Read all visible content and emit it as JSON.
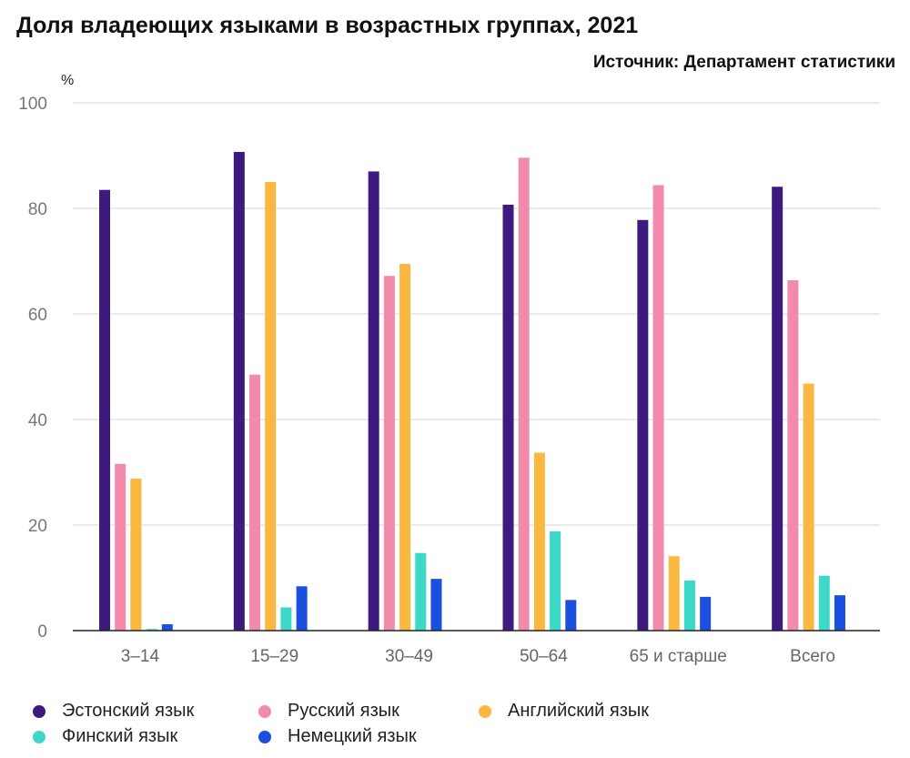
{
  "title": "Доля владеющих языками в возрастных группах, 2021",
  "source": "Источник: Департамент статистики",
  "chart_data": {
    "type": "bar",
    "title": "Доля владеющих языками в возрастных группах, 2021",
    "ylabel": "%",
    "xlabel": "",
    "ylim": [
      0,
      100
    ],
    "yticks": [
      0,
      20,
      40,
      60,
      80,
      100
    ],
    "grid": true,
    "legend_position": "bottom",
    "categories": [
      "3–14",
      "15–29",
      "30–49",
      "50–64",
      "65 и старше",
      "Всего"
    ],
    "series": [
      {
        "name": "Эстонский язык",
        "color": "#3d1a7e",
        "values": [
          83.5,
          90.7,
          87.0,
          80.7,
          77.8,
          84.1
        ]
      },
      {
        "name": "Русский язык",
        "color": "#f28bab",
        "values": [
          31.6,
          48.5,
          67.2,
          89.6,
          84.4,
          66.4
        ]
      },
      {
        "name": "Английский язык",
        "color": "#fbb840",
        "values": [
          28.8,
          85.0,
          69.5,
          33.7,
          14.1,
          46.8
        ]
      },
      {
        "name": "Финский язык",
        "color": "#3ed8c9",
        "values": [
          0.3,
          4.4,
          14.7,
          18.8,
          9.5,
          10.4
        ]
      },
      {
        "name": "Немецкий язык",
        "color": "#1a4fe0",
        "values": [
          1.2,
          8.4,
          9.8,
          5.8,
          6.4,
          6.7
        ]
      }
    ]
  }
}
